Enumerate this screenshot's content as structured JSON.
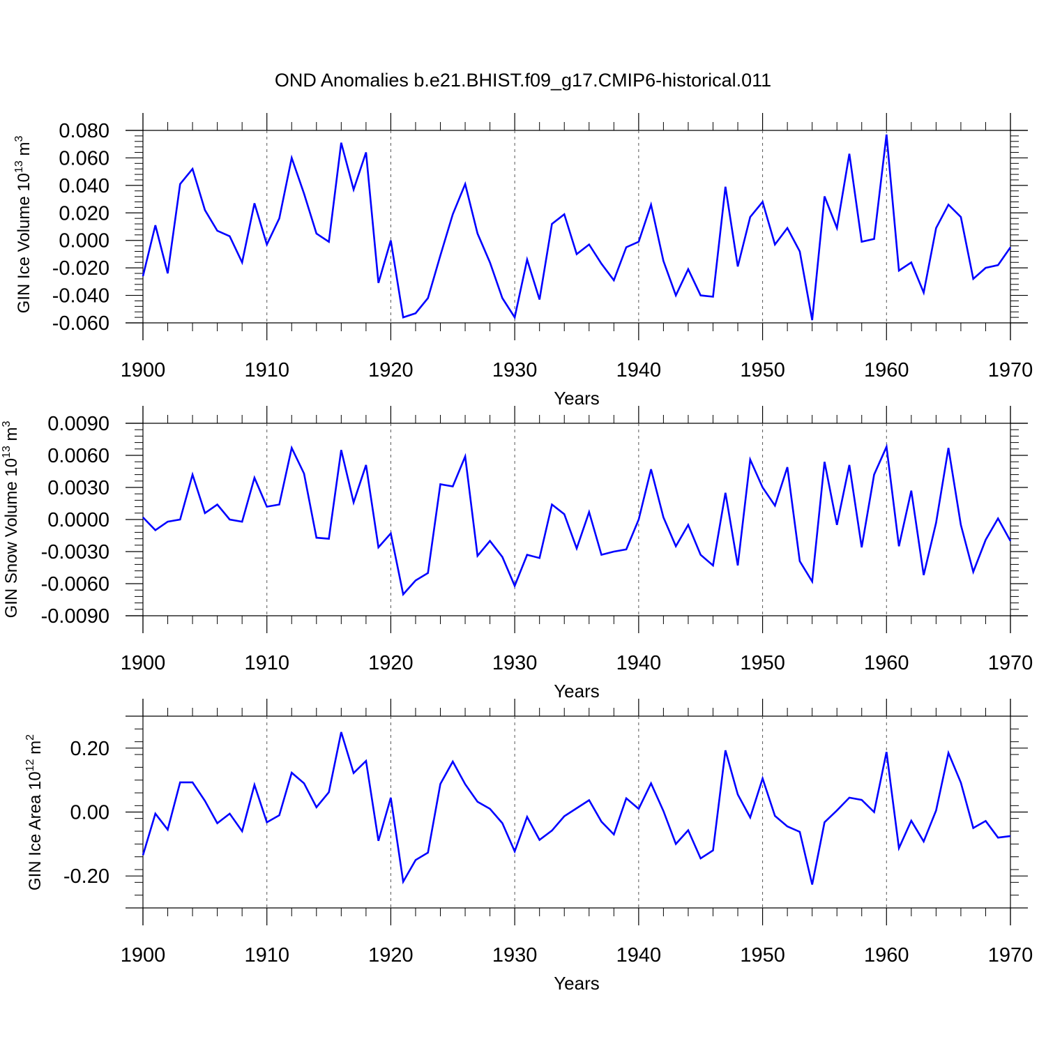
{
  "title": "OND Anomalies b.e21.BHIST.f09_g17.CMIP6-historical.011",
  "colors": {
    "line": "#0000ff",
    "axis": "#000000",
    "grid": "#555555"
  },
  "chart_data": [
    {
      "type": "line",
      "ylabel": {
        "main": "GIN Ice Volume 10",
        "exp": "13",
        "unit": " m",
        "unit_exp": "3"
      },
      "xlabel": "Years",
      "xlim": [
        1900,
        1970
      ],
      "ylim": [
        -0.06,
        0.08
      ],
      "xticks": [
        1900,
        1910,
        1920,
        1930,
        1940,
        1950,
        1960,
        1970
      ],
      "yticks": [
        0.08,
        0.06,
        0.04,
        0.02,
        0.0,
        -0.02,
        -0.04,
        -0.06
      ],
      "yticklabels": [
        "0.080",
        "0.060",
        "0.040",
        "0.020",
        "0.000",
        "-0.020",
        "-0.040",
        "-0.060"
      ],
      "grid": "vertical dashed at decades",
      "x_start": 1900,
      "values": [
        -0.026,
        0.011,
        -0.024,
        0.041,
        0.052,
        0.022,
        0.007,
        0.003,
        -0.016,
        0.027,
        -0.003,
        0.016,
        0.06,
        0.034,
        0.005,
        -0.001,
        0.071,
        0.037,
        0.064,
        -0.031,
        0.0,
        -0.056,
        -0.053,
        -0.042,
        -0.011,
        0.019,
        0.041,
        0.005,
        -0.016,
        -0.042,
        -0.056,
        -0.014,
        -0.043,
        0.012,
        0.019,
        -0.01,
        -0.003,
        -0.017,
        -0.029,
        -0.005,
        -0.001,
        0.026,
        -0.015,
        -0.04,
        -0.021,
        -0.04,
        -0.041,
        0.039,
        -0.019,
        0.017,
        0.028,
        -0.003,
        0.009,
        -0.008,
        -0.058,
        0.032,
        0.009,
        0.063,
        -0.001,
        0.001,
        0.077,
        -0.022,
        -0.016,
        -0.038,
        0.009,
        0.026,
        0.017,
        -0.028,
        -0.02,
        -0.018,
        -0.005
      ]
    },
    {
      "type": "line",
      "ylabel": {
        "main": "GIN Snow Volume 10",
        "exp": "13",
        "unit": " m",
        "unit_exp": "3"
      },
      "xlabel": "Years",
      "xlim": [
        1900,
        1970
      ],
      "ylim": [
        -0.009,
        0.009
      ],
      "xticks": [
        1900,
        1910,
        1920,
        1930,
        1940,
        1950,
        1960,
        1970
      ],
      "yticks": [
        0.009,
        0.006,
        0.003,
        0.0,
        -0.003,
        -0.006,
        -0.009
      ],
      "yticklabels": [
        "0.0090",
        "0.0060",
        "0.0030",
        "0.0000",
        "-0.0030",
        "-0.0060",
        "-0.0090"
      ],
      "grid": "vertical dashed at decades",
      "x_start": 1900,
      "values": [
        0.0002,
        -0.001,
        -0.0002,
        0.0,
        0.0042,
        0.0006,
        0.0014,
        0.0,
        -0.0002,
        0.0039,
        0.0012,
        0.0014,
        0.0067,
        0.0043,
        -0.0017,
        -0.0018,
        0.0065,
        0.0016,
        0.0051,
        -0.0026,
        -0.0013,
        -0.007,
        -0.0057,
        -0.005,
        0.0033,
        0.0031,
        0.0059,
        -0.0034,
        -0.002,
        -0.0035,
        -0.0062,
        -0.0033,
        -0.0036,
        0.0014,
        0.0005,
        -0.0027,
        0.0007,
        -0.0033,
        -0.003,
        -0.0028,
        0.0,
        0.0047,
        0.0002,
        -0.0025,
        -0.0005,
        -0.0033,
        -0.0043,
        0.0025,
        -0.0043,
        0.0056,
        0.003,
        0.0013,
        0.0049,
        -0.0039,
        -0.0058,
        0.0054,
        -0.0005,
        0.0051,
        -0.0026,
        0.0042,
        0.0068,
        -0.0025,
        0.0027,
        -0.0052,
        -0.0003,
        0.0067,
        -0.0005,
        -0.0049,
        -0.0019,
        0.0001,
        -0.002
      ]
    },
    {
      "type": "line",
      "ylabel": {
        "main": "GIN Ice Area 10",
        "exp": "12",
        "unit": " m",
        "unit_exp": "2"
      },
      "xlabel": "Years",
      "xlim": [
        1900,
        1970
      ],
      "ylim": [
        -0.3,
        0.3
      ],
      "xticks": [
        1900,
        1910,
        1920,
        1930,
        1940,
        1950,
        1960,
        1970
      ],
      "yticks": [
        0.2,
        0.0,
        -0.2
      ],
      "yticklabels": [
        "0.20",
        "0.00",
        "-0.20"
      ],
      "grid": "vertical dashed at decades",
      "x_start": 1900,
      "values": [
        -0.135,
        -0.005,
        -0.055,
        0.093,
        0.093,
        0.035,
        -0.035,
        -0.005,
        -0.06,
        0.085,
        -0.032,
        -0.01,
        0.123,
        0.09,
        0.015,
        0.062,
        0.25,
        0.122,
        0.16,
        -0.09,
        0.045,
        -0.218,
        -0.15,
        -0.127,
        0.088,
        0.158,
        0.087,
        0.032,
        0.01,
        -0.035,
        -0.123,
        -0.015,
        -0.087,
        -0.058,
        -0.013,
        0.012,
        0.037,
        -0.03,
        -0.07,
        0.043,
        0.01,
        0.09,
        0.003,
        -0.1,
        -0.057,
        -0.145,
        -0.12,
        0.193,
        0.055,
        -0.017,
        0.105,
        -0.012,
        -0.045,
        -0.062,
        -0.227,
        -0.032,
        0.005,
        0.045,
        0.038,
        0.0,
        0.188,
        -0.113,
        -0.027,
        -0.092,
        0.005,
        0.185,
        0.092,
        -0.05,
        -0.028,
        -0.08,
        -0.075
      ]
    }
  ]
}
